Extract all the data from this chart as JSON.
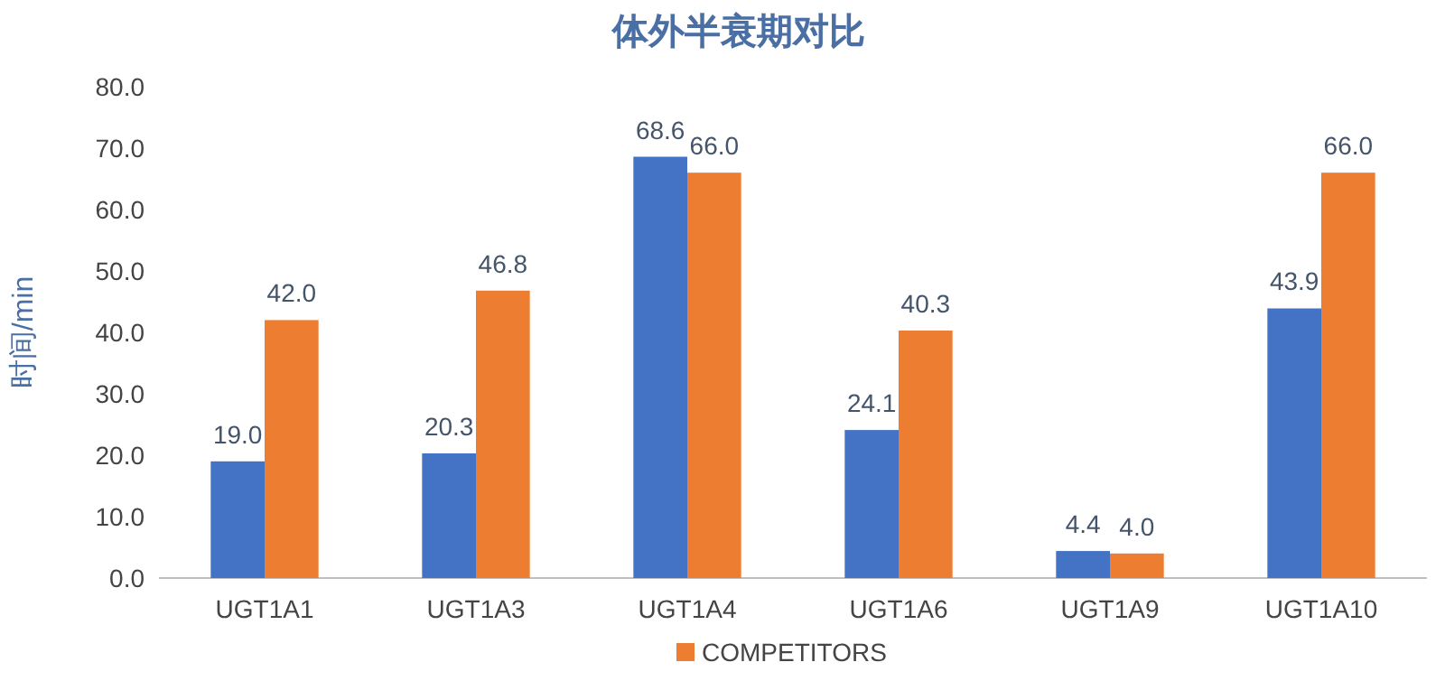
{
  "chart_data": {
    "type": "bar",
    "title": "体外半衰期对比",
    "ylabel": "时间/min",
    "categories": [
      "UGT1A1",
      "UGT1A3",
      "UGT1A4",
      "UGT1A6",
      "UGT1A9",
      "UGT1A10"
    ],
    "series": [
      {
        "color": "#4472c4",
        "values": [
          19.0,
          20.3,
          68.6,
          24.1,
          4.4,
          43.9
        ],
        "value_labels": [
          "19.0",
          "20.3",
          "68.6",
          "24.1",
          "4.4",
          "43.9"
        ]
      },
      {
        "name": "COMPETITORS",
        "color": "#ed7d31",
        "values": [
          42.0,
          46.8,
          66.0,
          40.3,
          4.0,
          66.0
        ],
        "value_labels": [
          "42.0",
          "46.8",
          "66.0",
          "40.3",
          "4.0",
          "66.0"
        ]
      }
    ],
    "ylim": [
      0,
      80
    ],
    "yticks": [
      {
        "value": 0,
        "label": "0.0"
      },
      {
        "value": 10,
        "label": "10.0"
      },
      {
        "value": 20,
        "label": "20.0"
      },
      {
        "value": 30,
        "label": "30.0"
      },
      {
        "value": 40,
        "label": "40.0"
      },
      {
        "value": 50,
        "label": "50.0"
      },
      {
        "value": 60,
        "label": "60.0"
      },
      {
        "value": 70,
        "label": "70.0"
      },
      {
        "value": 80,
        "label": "80.0"
      }
    ],
    "grid": false,
    "legend": "bottom"
  }
}
